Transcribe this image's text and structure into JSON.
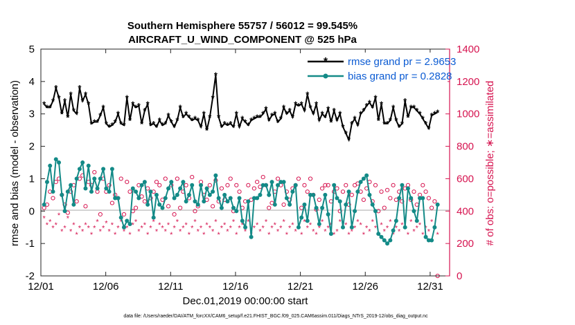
{
  "chart_data": {
    "type": "line",
    "title_line1": "Southern Hemisphere 55757 / 56012 = 99.545%",
    "title_line2": "AIRCRAFT_U_WIND_COMPONENT @ 525 hPa",
    "xlabel": "Dec.01,2019 00:00:00 start",
    "ylabel_left": "rmse and bias (model - observation)",
    "ylabel_right": "# of obs: o=possible; ∗=assimilated",
    "xlim": [
      0,
      31.5
    ],
    "ylim_left": [
      -2,
      5
    ],
    "ylim_right": [
      0,
      1400
    ],
    "x_ticks": [
      0,
      5,
      10,
      15,
      20,
      25,
      30
    ],
    "x_tick_labels": [
      "12/01",
      "12/06",
      "12/11",
      "12/16",
      "12/21",
      "12/26",
      "12/31"
    ],
    "y_ticks_left": [
      -2,
      -1,
      0,
      1,
      2,
      3,
      4,
      5
    ],
    "y_tick_labels_left": [
      "-2",
      "-1",
      "0",
      "1",
      "2",
      "3",
      "4",
      "5"
    ],
    "y_ticks_right": [
      0,
      200,
      400,
      600,
      800,
      1000,
      1200,
      1400
    ],
    "y_tick_labels_right": [
      "0",
      "200",
      "400",
      "600",
      "800",
      "1000",
      "1200",
      "1400"
    ],
    "footnote": "data file: /Users/raeder/DAI/ATM_forcXX/CAM6_setup/f.e21.FHIST_BGC.f09_025.CAM6assim.011/Diags_NTrS_2019-12/obs_diag_output.nc",
    "series": [
      {
        "name": "rmse grand pr = 2.9653",
        "color": "#000000",
        "marker": "star",
        "values": [
          3.3,
          3.2,
          3.2,
          3.4,
          3.8,
          3.5,
          3.0,
          3.4,
          2.9,
          3.6,
          3.1,
          3.0,
          3.8,
          3.4,
          3.6,
          3.3,
          2.7,
          2.75,
          2.75,
          2.95,
          3.2,
          2.7,
          2.6,
          2.65,
          2.75,
          3.0,
          2.7,
          2.65,
          3.5,
          2.8,
          3.3,
          3.2,
          3.25,
          2.7,
          3.1,
          3.3,
          2.65,
          2.7,
          2.6,
          2.8,
          2.65,
          2.7,
          2.95,
          2.75,
          2.6,
          2.8,
          3.2,
          2.9,
          3.0,
          2.9,
          2.8,
          2.85,
          2.8,
          2.6,
          3.0,
          2.5,
          2.9,
          3.5,
          4.2,
          2.9,
          2.6,
          2.7,
          2.65,
          2.7,
          2.6,
          3.0,
          2.6,
          2.85,
          2.75,
          2.65,
          2.8,
          2.85,
          2.9,
          2.9,
          3.0,
          3.15,
          2.8,
          2.95,
          3.0,
          2.75,
          2.85,
          3.2,
          3.0,
          3.1,
          2.9,
          3.3,
          3.25,
          3.3,
          3.1,
          3.6,
          3.2,
          3.0,
          3.3,
          2.8,
          3.0,
          2.9,
          3.15,
          2.75,
          3.1,
          2.8,
          3.0,
          2.6,
          2.4,
          2.2,
          2.7,
          2.85,
          2.65,
          3.0,
          3.1,
          3.25,
          3.35,
          3.2,
          3.5,
          2.8,
          3.3,
          2.7,
          2.7,
          2.8,
          3.2,
          2.8,
          2.6,
          2.7,
          3.4,
          2.9,
          3.2,
          3.2,
          3.1,
          3.0,
          2.85,
          2.7,
          2.55,
          2.95,
          3.0,
          3.05
        ]
      },
      {
        "name": "bias grand pr = 0.2828",
        "color": "#138a87",
        "marker": "circle",
        "values": [
          0.2,
          0.9,
          1.4,
          0.6,
          1.6,
          1.5,
          0.5,
          0.0,
          0.6,
          0.8,
          0.2,
          1.0,
          1.3,
          1.5,
          0.7,
          1.4,
          0.6,
          1.0,
          0.7,
          1.0,
          1.3,
          0.7,
          0.6,
          1.3,
          0.4,
          0.4,
          -0.2,
          -0.5,
          -0.3,
          -0.4,
          0.7,
          0.6,
          0.4,
          0.8,
          0.9,
          0.2,
          0.6,
          -0.2,
          0.5,
          0.2,
          0.1,
          0.4,
          0.7,
          0.9,
          0.4,
          0.5,
          0.7,
          0.9,
          0.3,
          0.5,
          0.8,
          0.3,
          0.2,
          0.8,
          0.3,
          0.7,
          0.5,
          0.6,
          1.1,
          0.4,
          0.1,
          0.5,
          0.3,
          0.4,
          0.1,
          0.0,
          0.4,
          -0.3,
          -0.5,
          0.3,
          -0.8,
          0.4,
          0.4,
          0.5,
          0.8,
          0.8,
          0.5,
          0.9,
          0.2,
          0.8,
          0.9,
          0.9,
          0.4,
          0.2,
          0.6,
          0.8,
          -0.5,
          -0.2,
          0.2,
          -0.3,
          0.5,
          0.5,
          0.1,
          -0.4,
          0.1,
          0.5,
          -0.1,
          -0.7,
          0.8,
          0.4,
          0.3,
          -0.5,
          0.2,
          0.6,
          -0.5,
          0.0,
          0.6,
          0.9,
          1.0,
          1.1,
          0.5,
          0.2,
          0.0,
          -0.7,
          -0.8,
          -0.9,
          -1.0,
          -0.9,
          -0.6,
          -0.3,
          0.4,
          0.8,
          -0.5,
          0.7,
          0.4,
          0.0,
          -0.3,
          0.4,
          0.4,
          -0.8,
          -0.9,
          -0.9,
          -0.5,
          0.2
        ]
      },
      {
        "name": "obs possible",
        "color": "#d6134f",
        "marker": "o",
        "values": [
          420,
          440,
          520,
          480,
          580,
          600,
          500,
          440,
          390,
          520,
          560,
          460,
          600,
          620,
          430,
          580,
          560,
          640,
          520,
          380,
          600,
          520,
          560,
          450,
          500,
          480,
          600,
          380,
          580,
          520,
          400,
          420,
          560,
          490,
          460,
          540,
          480,
          520,
          580,
          560,
          470,
          600,
          430,
          560,
          380,
          600,
          420,
          520,
          560,
          480,
          610,
          400,
          430,
          580,
          500,
          470,
          560,
          430,
          590,
          460,
          540,
          470,
          560,
          600,
          400,
          560,
          520,
          420,
          460,
          560,
          470,
          540,
          580,
          550,
          610,
          560,
          420,
          450,
          520,
          600,
          560,
          440,
          520,
          470,
          540,
          560,
          600,
          420,
          560,
          520,
          600,
          500,
          410,
          470,
          540,
          560,
          560,
          460,
          520,
          540,
          400,
          520,
          560,
          440,
          500,
          560,
          570,
          520,
          470,
          540,
          580,
          460,
          560,
          400,
          520,
          420,
          530,
          480,
          560,
          470,
          520,
          460,
          540,
          560,
          470,
          520,
          440,
          500,
          560,
          520,
          480,
          420,
          460,
          0
        ]
      },
      {
        "name": "obs assimilated",
        "color": "#d6134f",
        "marker": "star",
        "values": [
          360,
          320,
          340,
          300,
          320,
          380,
          280,
          300,
          360,
          280,
          320,
          260,
          300,
          280,
          320,
          300,
          260,
          300,
          340,
          280,
          300,
          330,
          280,
          320,
          260,
          300,
          340,
          280,
          300,
          260,
          320,
          340,
          280,
          300,
          320,
          260,
          300,
          340,
          280,
          320,
          300,
          280,
          320,
          260,
          300,
          340,
          280,
          300,
          320,
          260,
          300,
          340,
          280,
          300,
          260,
          320,
          300,
          280,
          340,
          260,
          300,
          320,
          280,
          300,
          340,
          260,
          300,
          320,
          280,
          340,
          260,
          300,
          320,
          280,
          300,
          340,
          260,
          300,
          320,
          280,
          300,
          340,
          260,
          300,
          320,
          280,
          300,
          260,
          340,
          300,
          320,
          280,
          260,
          300,
          340,
          280,
          300,
          320,
          260,
          280,
          340,
          300,
          320,
          260,
          280,
          300,
          340,
          320,
          260,
          300,
          280,
          340,
          300,
          260,
          320,
          280,
          300,
          340,
          260,
          300,
          280,
          320,
          300,
          260,
          340,
          280,
          300,
          320,
          260,
          300,
          280,
          340,
          300,
          260
        ]
      }
    ],
    "legend_position": "top-right"
  }
}
